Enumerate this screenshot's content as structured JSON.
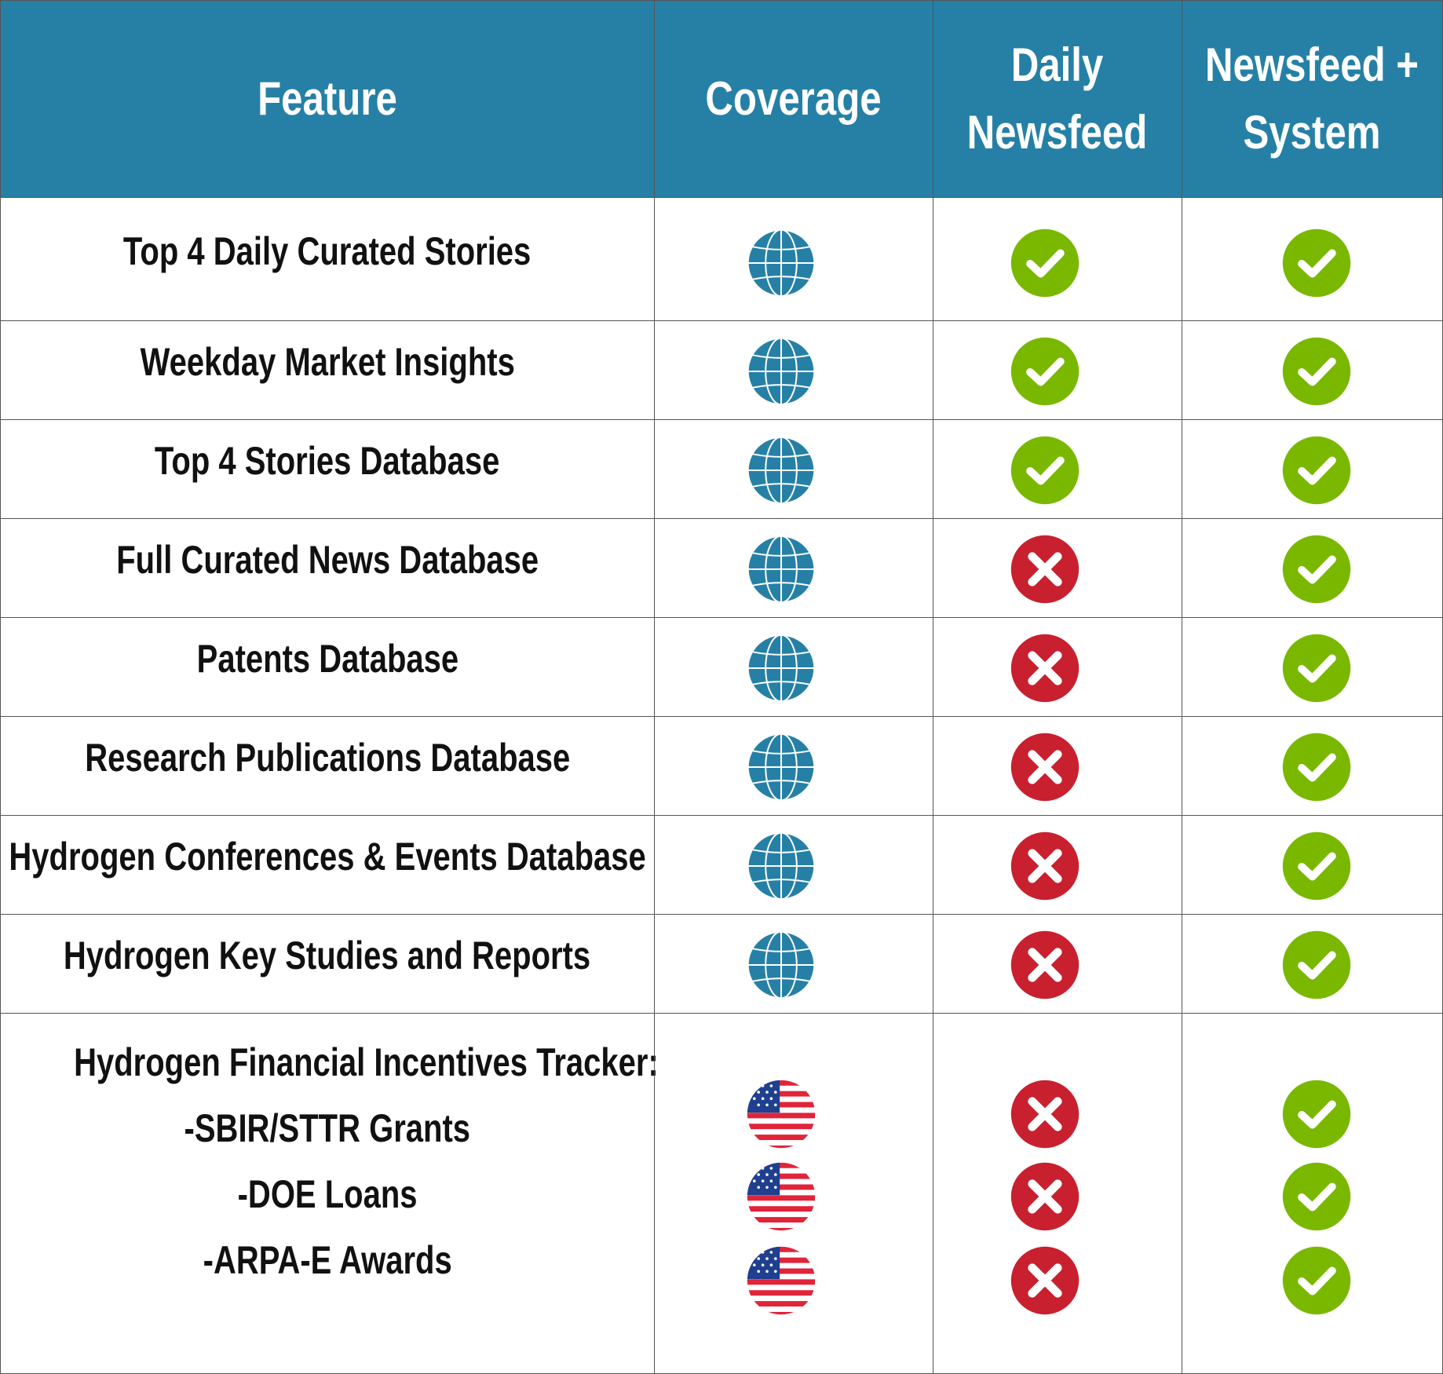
{
  "header": {
    "feature": "Feature",
    "coverage": "Coverage",
    "daily": "Daily\nNewsfeed",
    "system": "Newsfeed +\nSystem"
  },
  "colors": {
    "header_bg": "#2680a6",
    "globe": "#2680a6",
    "check": "#7ab800",
    "cross": "#c8202f"
  },
  "rows": [
    {
      "feature": "Top 4 Daily Curated Stories",
      "coverage": "globe-icon",
      "daily": "check",
      "system": "check"
    },
    {
      "feature": "Weekday Market Insights",
      "coverage": "globe-icon",
      "daily": "check",
      "system": "check"
    },
    {
      "feature": "Top 4 Stories Database",
      "coverage": "globe-icon",
      "daily": "check",
      "system": "check"
    },
    {
      "feature": "Full Curated News Database",
      "coverage": "globe-icon",
      "daily": "cross",
      "system": "check"
    },
    {
      "feature": "Patents Database",
      "coverage": "globe-icon",
      "daily": "cross",
      "system": "check"
    },
    {
      "feature": "Research Publications Database",
      "coverage": "globe-icon",
      "daily": "cross",
      "system": "check"
    },
    {
      "feature": "Hydrogen Conferences & Events Database",
      "coverage": "globe-icon",
      "daily": "cross",
      "system": "check"
    },
    {
      "feature": "Hydrogen Key Studies and Reports",
      "coverage": "globe-icon",
      "daily": "cross",
      "system": "check"
    }
  ],
  "tracker": {
    "title": "Hydrogen Financial Incentives Tracker:",
    "items": [
      {
        "label": "-SBIR/STTR Grants",
        "coverage": "us-flag-icon",
        "daily": "cross",
        "system": "check"
      },
      {
        "label": "-DOE Loans",
        "coverage": "us-flag-icon",
        "daily": "cross",
        "system": "check"
      },
      {
        "label": "-ARPA-E Awards",
        "coverage": "us-flag-icon",
        "daily": "cross",
        "system": "check"
      }
    ]
  }
}
